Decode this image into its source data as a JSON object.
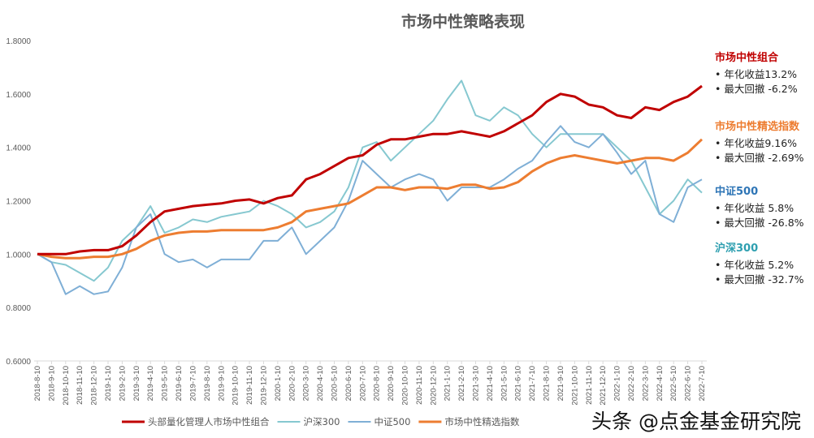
{
  "chart_data": {
    "type": "line",
    "title": "市场中性策略表现",
    "ylim": [
      0.6,
      1.8
    ],
    "yticks": [
      "0.6000",
      "0.8000",
      "1.0000",
      "1.2000",
      "1.4000",
      "1.6000",
      "1.8000"
    ],
    "grid": false,
    "legend_position": "bottom",
    "x": [
      "2018-8-10",
      "2018-9-10",
      "2018-10-10",
      "2018-11-10",
      "2018-12-10",
      "2019-1-10",
      "2019-2-10",
      "2019-3-10",
      "2019-4-10",
      "2019-5-10",
      "2019-6-10",
      "2019-7-10",
      "2019-8-10",
      "2019-9-10",
      "2019-10-10",
      "2019-11-10",
      "2019-12-10",
      "2020-1-10",
      "2020-2-10",
      "2020-3-10",
      "2020-4-10",
      "2020-5-10",
      "2020-6-10",
      "2020-7-10",
      "2020-8-10",
      "2020-9-10",
      "2020-10-10",
      "2020-11-10",
      "2020-12-10",
      "2021-1-10",
      "2021-2-10",
      "2021-3-10",
      "2021-4-10",
      "2021-5-10",
      "2021-6-10",
      "2021-7-10",
      "2021-8-10",
      "2021-9-10",
      "2021-10-10",
      "2021-11-10",
      "2021-12-10",
      "2022-1-10",
      "2022-2-10",
      "2022-3-10",
      "2022-4-10",
      "2022-5-10",
      "2022-6-10",
      "2022-7-10"
    ],
    "series": [
      {
        "name": "头部量化管理人市场中性组合",
        "color": "#c00000",
        "width": 3,
        "values": [
          1.0,
          1.0,
          1.0,
          1.01,
          1.015,
          1.015,
          1.03,
          1.07,
          1.12,
          1.16,
          1.17,
          1.18,
          1.185,
          1.19,
          1.2,
          1.205,
          1.19,
          1.21,
          1.22,
          1.28,
          1.3,
          1.33,
          1.36,
          1.37,
          1.41,
          1.43,
          1.43,
          1.44,
          1.45,
          1.45,
          1.46,
          1.45,
          1.44,
          1.46,
          1.49,
          1.52,
          1.57,
          1.6,
          1.59,
          1.56,
          1.55,
          1.52,
          1.51,
          1.55,
          1.54,
          1.57,
          1.59,
          1.63
        ]
      },
      {
        "name": "沪深300",
        "color": "#86c8d0",
        "width": 2,
        "values": [
          1.0,
          0.97,
          0.96,
          0.93,
          0.9,
          0.95,
          1.05,
          1.1,
          1.18,
          1.08,
          1.1,
          1.13,
          1.12,
          1.14,
          1.15,
          1.16,
          1.2,
          1.18,
          1.15,
          1.1,
          1.12,
          1.16,
          1.25,
          1.4,
          1.42,
          1.35,
          1.4,
          1.45,
          1.5,
          1.58,
          1.65,
          1.52,
          1.5,
          1.55,
          1.52,
          1.45,
          1.4,
          1.45,
          1.45,
          1.45,
          1.45,
          1.4,
          1.35,
          1.25,
          1.15,
          1.2,
          1.28,
          1.23
        ]
      },
      {
        "name": "中证500",
        "color": "#7fafd6",
        "width": 2,
        "values": [
          1.0,
          0.97,
          0.85,
          0.88,
          0.85,
          0.86,
          0.95,
          1.1,
          1.15,
          1.0,
          0.97,
          0.98,
          0.95,
          0.98,
          0.98,
          0.98,
          1.05,
          1.05,
          1.1,
          1.0,
          1.05,
          1.1,
          1.2,
          1.35,
          1.3,
          1.25,
          1.28,
          1.3,
          1.28,
          1.2,
          1.25,
          1.25,
          1.25,
          1.28,
          1.32,
          1.35,
          1.42,
          1.48,
          1.42,
          1.4,
          1.45,
          1.38,
          1.3,
          1.35,
          1.15,
          1.12,
          1.25,
          1.28
        ]
      },
      {
        "name": "市场中性精选指数",
        "color": "#ed7d31",
        "width": 3,
        "values": [
          1.0,
          0.99,
          0.985,
          0.985,
          0.99,
          0.99,
          1.0,
          1.02,
          1.05,
          1.07,
          1.08,
          1.085,
          1.085,
          1.09,
          1.09,
          1.09,
          1.09,
          1.1,
          1.12,
          1.16,
          1.17,
          1.18,
          1.19,
          1.22,
          1.25,
          1.25,
          1.24,
          1.25,
          1.25,
          1.245,
          1.26,
          1.26,
          1.245,
          1.25,
          1.27,
          1.31,
          1.34,
          1.36,
          1.37,
          1.36,
          1.35,
          1.34,
          1.35,
          1.36,
          1.36,
          1.35,
          1.38,
          1.43
        ]
      }
    ]
  },
  "annotations": [
    {
      "title": "市场中性组合",
      "color": "#c00000",
      "lines": [
        "• 年化收益13.2%",
        "• 最大回撤 -6.2%"
      ]
    },
    {
      "title": "市场中性精选指数",
      "color": "#ed7d31",
      "lines": [
        "• 年化收益9.16%",
        "• 最大回撤 -2.69%"
      ]
    },
    {
      "title": "中证500",
      "color": "#2e75b6",
      "lines": [
        "• 年化收益 5.8%",
        "• 最大回撤 -26.8%"
      ]
    },
    {
      "title": "沪深300",
      "color": "#2e9fb0",
      "lines": [
        "• 年化收益 5.2%",
        "• 最大回撤 -32.7%"
      ]
    }
  ],
  "watermark": "头条 @点金基金研究院"
}
